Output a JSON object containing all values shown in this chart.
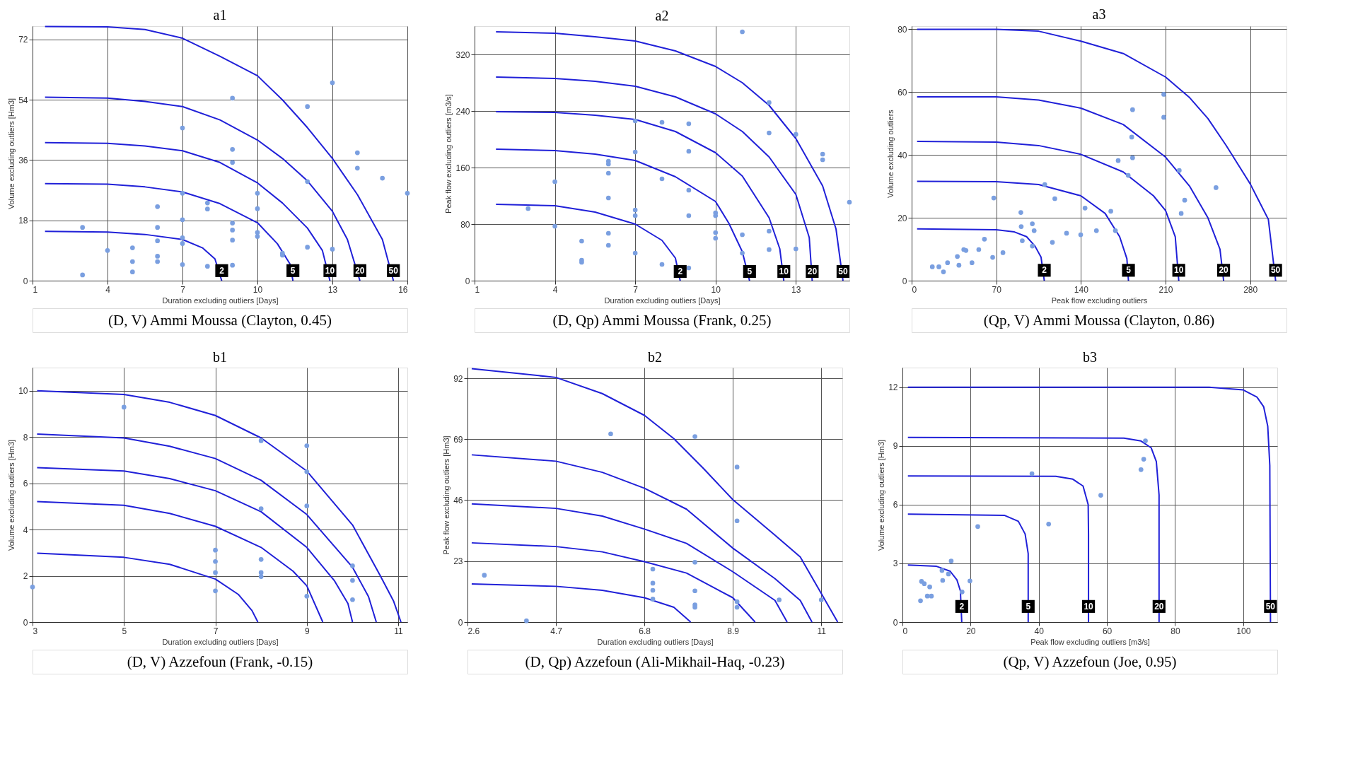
{
  "chart_data": [
    {
      "type": "scatter",
      "title": "a1",
      "xlabel": "Duration excluding outliers [Days]",
      "ylabel": "Volume excluding outliers [Hm3]",
      "xlim": [
        1,
        16
      ],
      "ylim": [
        0,
        76
      ],
      "xticks": [
        1,
        4,
        7,
        10,
        13,
        16
      ],
      "yticks": [
        0,
        18,
        36,
        54,
        72
      ],
      "grid": true,
      "annotations": [
        "(D, V) Ammi Moussa (Clayton, 0.45)",
        {
          "text": "2",
          "x": 8.57,
          "y": 3
        },
        {
          "text": "5",
          "x": 11.42,
          "y": 3
        },
        {
          "text": "10",
          "x": 12.9,
          "y": 3
        },
        {
          "text": "20",
          "x": 14.1,
          "y": 3
        },
        {
          "text": "50",
          "x": 15.44,
          "y": 3
        }
      ],
      "series": [
        {
          "type": "scatter",
          "marker": "circle",
          "color": "#7a9fe0",
          "x": [
            3,
            3,
            4,
            5,
            5,
            5,
            6,
            6,
            6,
            6,
            6,
            7,
            7,
            7,
            7,
            7,
            7,
            8,
            8,
            8,
            9,
            9,
            9,
            9,
            9,
            9,
            9,
            10,
            10,
            10,
            10,
            11,
            11,
            12,
            12,
            12,
            13,
            13,
            14,
            14,
            15,
            16
          ],
          "values": [
            1.7,
            15.9,
            9.0,
            9.8,
            5.7,
            2.6,
            22.1,
            15.9,
            11.9,
            7.3,
            5.7,
            45.6,
            26.1,
            18.2,
            12.8,
            11.1,
            4.8,
            23.2,
            21.4,
            4.3,
            54.5,
            39.2,
            35.3,
            17.2,
            15.1,
            12.1,
            4.6,
            26.1,
            21.5,
            14.4,
            13.2,
            8.2,
            7.6,
            52,
            29.6,
            10,
            59.1,
            9.4,
            38.2,
            33.6,
            30.6,
            26.1
          ]
        },
        {
          "type": "line",
          "color": "#2020d8",
          "x": [
            1.5,
            4,
            5.5,
            7,
            7.8,
            8.3,
            8.57
          ],
          "values": [
            14.7,
            14.5,
            13.8,
            12.3,
            9.8,
            6.5,
            0
          ]
        },
        {
          "type": "line",
          "color": "#2020d8",
          "x": [
            1.5,
            4,
            5.5,
            7,
            8.5,
            10,
            10.8,
            11.3,
            11.42
          ],
          "values": [
            29,
            28.8,
            28,
            26.5,
            23,
            17.3,
            11,
            5,
            0
          ]
        },
        {
          "type": "line",
          "color": "#2020d8",
          "x": [
            1.5,
            4,
            5.5,
            7,
            8.5,
            10,
            11,
            12,
            12.6,
            12.9
          ],
          "values": [
            41.2,
            41,
            40.2,
            38.8,
            35.3,
            29.2,
            23.2,
            15.7,
            9,
            0
          ]
        },
        {
          "type": "line",
          "color": "#2020d8",
          "x": [
            1.5,
            4,
            5.5,
            7,
            8.5,
            10,
            11,
            12,
            13,
            13.6,
            14.1
          ],
          "values": [
            54.8,
            54.5,
            53.5,
            52,
            48,
            42,
            36.5,
            29.8,
            20.7,
            12.3,
            0
          ]
        },
        {
          "type": "line",
          "color": "#2020d8",
          "x": [
            1.5,
            4,
            5.5,
            7,
            8.5,
            10,
            11,
            12,
            13,
            14,
            15,
            15.44
          ],
          "values": [
            75.9,
            75.8,
            75,
            72.4,
            67,
            61.2,
            54,
            45.7,
            36.5,
            25.7,
            12.3,
            0
          ]
        }
      ]
    },
    {
      "type": "scatter",
      "title": "a2",
      "xlabel": "Duration excluding outliers [Days]",
      "ylabel": "Peak flow excluding outliers [m3/s]",
      "xlim": [
        1,
        15
      ],
      "ylim": [
        0,
        360
      ],
      "xticks": [
        1,
        4,
        7,
        10,
        13
      ],
      "yticks": [
        0,
        80,
        160,
        240,
        320
      ],
      "grid": true,
      "annotations": [
        "(D, Qp) Ammi Moussa (Frank, 0.25)",
        {
          "text": "2",
          "x": 8.68,
          "y": 13
        },
        {
          "text": "5",
          "x": 11.27,
          "y": 13
        },
        {
          "text": "10",
          "x": 12.55,
          "y": 13
        },
        {
          "text": "20",
          "x": 13.61,
          "y": 13
        },
        {
          "text": "50",
          "x": 14.76,
          "y": 13
        }
      ],
      "series": [
        {
          "type": "scatter",
          "marker": "circle",
          "color": "#7a9fe0",
          "x": [
            11,
            3,
            4,
            4,
            5,
            5,
            5,
            6,
            6,
            6,
            6,
            6,
            6,
            7,
            7,
            7,
            7,
            7,
            8,
            8,
            8,
            9,
            9,
            9,
            9,
            9,
            10,
            10,
            10,
            10,
            11,
            11,
            12,
            12,
            12,
            12,
            13,
            13,
            14,
            14,
            15
          ],
          "values": [
            352,
            102,
            140,
            77,
            56,
            29,
            26,
            169,
            165,
            152,
            117,
            67,
            50,
            226,
            182,
            100,
            92,
            39,
            224,
            144,
            23,
            222,
            183,
            128,
            92,
            18,
            96,
            92,
            68,
            60,
            65,
            39,
            252,
            209,
            70,
            44,
            207,
            45,
            179,
            171,
            111
          ]
        },
        {
          "type": "line",
          "color": "#2020d8",
          "x": [
            1.8,
            4,
            5.5,
            7,
            8,
            8.5,
            8.68
          ],
          "values": [
            108,
            106,
            97,
            80,
            57,
            32,
            0
          ]
        },
        {
          "type": "line",
          "color": "#2020d8",
          "x": [
            1.8,
            4,
            5.5,
            7,
            8.5,
            10,
            10.5,
            11,
            11.27
          ],
          "values": [
            186,
            184,
            179,
            170,
            147,
            112,
            81,
            41,
            0
          ]
        },
        {
          "type": "line",
          "color": "#2020d8",
          "x": [
            1.8,
            4,
            5.5,
            7,
            8.5,
            10,
            11,
            12,
            12.4,
            12.55
          ],
          "values": [
            239,
            238,
            234,
            228,
            211,
            181,
            148,
            89,
            45,
            0
          ]
        },
        {
          "type": "line",
          "color": "#2020d8",
          "x": [
            1.8,
            4,
            5.5,
            7,
            8.5,
            10,
            11,
            12,
            13,
            13.5,
            13.61
          ],
          "values": [
            288,
            286,
            282,
            275,
            260,
            236,
            211,
            175,
            122,
            61,
            0
          ]
        },
        {
          "type": "line",
          "color": "#2020d8",
          "x": [
            1.8,
            4,
            5.5,
            7,
            8.5,
            10,
            11,
            12,
            13,
            14,
            14.5,
            14.76
          ],
          "values": [
            352,
            350,
            345,
            339,
            325,
            303,
            280,
            248,
            201,
            134,
            73,
            0
          ]
        }
      ]
    },
    {
      "type": "scatter",
      "title": "a3",
      "xlabel": "Peak flow excluding outliers",
      "ylabel": "Volume excluding outliers",
      "xlim": [
        0,
        310
      ],
      "ylim": [
        0,
        81
      ],
      "xticks": [
        0,
        70,
        140,
        210,
        280
      ],
      "yticks": [
        0,
        20,
        40,
        60,
        80
      ],
      "grid": true,
      "annotations": [
        "(Qp, V) Ammi Moussa (Clayton, 0.86)",
        {
          "text": "2",
          "x": 109.7,
          "y": 3.3
        },
        {
          "text": "5",
          "x": 179.3,
          "y": 3.3
        },
        {
          "text": "10",
          "x": 220.9,
          "y": 3.3
        },
        {
          "text": "20",
          "x": 258,
          "y": 3.3
        },
        {
          "text": "50",
          "x": 301,
          "y": 3.3
        }
      ],
      "series": [
        {
          "type": "scatter",
          "marker": "circle",
          "color": "#7a9fe0",
          "x": [
            17.1,
            22.5,
            26.3,
            29.7,
            37.8,
            39.1,
            43.1,
            44.9,
            49.9,
            55.5,
            60.2,
            67,
            67.9,
            75.5,
            90.3,
            90.6,
            91.5,
            99.8,
            99.8,
            101.3,
            110.1,
            116.4,
            118.4,
            128.1,
            139.8,
            143.4,
            152.8,
            164.7,
            168.5,
            170.8,
            179.1,
            182,
            182.7,
            182.7,
            208.5,
            208.5,
            221.3,
            222.9,
            225.8,
            251.7
          ],
          "values": [
            4.4,
            4.4,
            2.8,
            5.7,
            7.7,
            4.9,
            9.9,
            9.6,
            5.7,
            9.9,
            13.2,
            7.4,
            26.3,
            8.9,
            21.7,
            17.2,
            12.7,
            18.1,
            11,
            15.9,
            30.6,
            12.2,
            26.1,
            15.1,
            14.6,
            23.1,
            15.9,
            22.1,
            15.9,
            38.2,
            33.5,
            45.7,
            54.4,
            39.1,
            59.3,
            52,
            35.1,
            21.4,
            25.6,
            29.6
          ]
        },
        {
          "type": "line",
          "color": "#2020d8",
          "x": [
            4.5,
            70,
            85,
            95,
            102,
            107,
            109.7
          ],
          "values": [
            16.5,
            16.2,
            15.5,
            14,
            11,
            7.5,
            0
          ]
        },
        {
          "type": "line",
          "color": "#2020d8",
          "x": [
            4.5,
            70,
            105,
            140,
            160,
            172,
            178,
            179.3
          ],
          "values": [
            31.6,
            31.5,
            30.6,
            27,
            21.4,
            14,
            7,
            0
          ]
        },
        {
          "type": "line",
          "color": "#2020d8",
          "x": [
            4.5,
            70,
            105,
            140,
            175,
            200,
            210,
            218,
            220.9
          ],
          "values": [
            44.3,
            44.1,
            43,
            40.2,
            34.6,
            27,
            22.3,
            14,
            0
          ]
        },
        {
          "type": "line",
          "color": "#2020d8",
          "x": [
            4.5,
            70,
            105,
            140,
            175,
            210,
            230,
            245,
            255,
            258
          ],
          "values": [
            58.5,
            58.5,
            57.5,
            54.9,
            49.7,
            39.3,
            30,
            20,
            10,
            0
          ]
        },
        {
          "type": "line",
          "color": "#2020d8",
          "x": [
            4.5,
            70,
            105,
            140,
            175,
            210,
            230,
            245,
            260,
            280,
            295,
            301
          ],
          "values": [
            80,
            80,
            79.4,
            76.2,
            72.3,
            64.8,
            58.2,
            51.6,
            43.1,
            30.8,
            19.5,
            0
          ]
        }
      ]
    },
    {
      "type": "scatter",
      "title": "b1",
      "xlabel": "Duration excluding outliers [Days]",
      "ylabel": "Volume excluding outliers [Hm3]",
      "xlim": [
        3,
        11.2
      ],
      "ylim": [
        0,
        11
      ],
      "xticks": [
        3,
        5,
        7,
        9,
        11
      ],
      "yticks": [
        0,
        2,
        4,
        6,
        8,
        10
      ],
      "grid": true,
      "annotations": [
        "(D, V) Azzefoun (Frank, -0.15)"
      ],
      "series": [
        {
          "type": "scatter",
          "marker": "circle",
          "color": "#7a9fe0",
          "x": [
            3,
            5,
            7,
            7,
            7,
            7,
            8,
            8,
            8,
            8,
            8,
            9,
            9,
            9,
            9,
            10,
            10,
            10
          ],
          "values": [
            1.52,
            9.29,
            3.11,
            2.62,
            2.14,
            1.35,
            7.84,
            4.9,
            2.71,
            2.14,
            1.97,
            7.62,
            6.5,
            5.02,
            1.12,
            1.8,
            0.97,
            2.43
          ]
        },
        {
          "type": "line",
          "color": "#2020d8",
          "x": [
            3.1,
            5,
            6,
            7,
            7.5,
            7.8,
            7.93
          ],
          "values": [
            2.98,
            2.8,
            2.5,
            1.86,
            1.2,
            0.5,
            0
          ]
        },
        {
          "type": "line",
          "color": "#2020d8",
          "x": [
            3.1,
            5,
            6,
            7,
            8,
            8.7,
            9,
            9.35
          ],
          "values": [
            5.21,
            5.05,
            4.7,
            4.14,
            3.23,
            2.2,
            1.57,
            0
          ]
        },
        {
          "type": "line",
          "color": "#2020d8",
          "x": [
            3.1,
            5,
            6,
            7,
            8,
            9,
            9.6,
            9.9,
            10
          ],
          "values": [
            6.68,
            6.53,
            6.2,
            5.68,
            4.77,
            3.23,
            1.8,
            0.8,
            0
          ]
        },
        {
          "type": "line",
          "color": "#2020d8",
          "x": [
            3.1,
            5,
            6,
            7,
            8,
            9,
            10,
            10.35,
            10.52
          ],
          "values": [
            8.13,
            7.96,
            7.6,
            7.07,
            6.13,
            4.65,
            2.37,
            1.1,
            0
          ]
        },
        {
          "type": "line",
          "color": "#2020d8",
          "x": [
            3.1,
            5,
            6,
            7,
            8,
            9,
            10,
            10.6,
            10.9,
            11.06
          ],
          "values": [
            10,
            9.84,
            9.5,
            8.93,
            7.96,
            6.53,
            4.2,
            2.03,
            0.9,
            0
          ]
        }
      ]
    },
    {
      "type": "scatter",
      "title": "b2",
      "xlabel": "Duration excluding outliers [Days]",
      "ylabel": "Peak flow excluding outliers [Hm3]",
      "xlim": [
        2.6,
        11.5
      ],
      "ylim": [
        0,
        96
      ],
      "xticks": [
        2.6,
        4.7,
        6.8,
        8.9,
        11
      ],
      "yticks": [
        0,
        23,
        46,
        69,
        92
      ],
      "grid": true,
      "annotations": [
        "(D, Qp) Azzefoun (Ali-Mikhail-Haq, -0.23)"
      ],
      "series": [
        {
          "type": "scatter",
          "marker": "circle",
          "color": "#7a9fe0",
          "x": [
            3,
            4,
            6,
            8,
            7,
            7,
            7,
            7,
            8,
            8,
            8,
            8,
            9,
            9,
            9,
            9,
            10,
            11
          ],
          "values": [
            17.7,
            0.5,
            71,
            70,
            20,
            14.7,
            12,
            8.7,
            22.6,
            11.8,
            6.5,
            5.6,
            58.5,
            38.2,
            7.7,
            5.6,
            8.4,
            8.4
          ]
        },
        {
          "type": "line",
          "color": "#2020d8",
          "x": [
            2.7,
            4.7,
            5.8,
            6.8,
            7.5,
            7.9
          ],
          "values": [
            14.4,
            13.5,
            12,
            9.2,
            5.6,
            0
          ]
        },
        {
          "type": "line",
          "color": "#2020d8",
          "x": [
            2.7,
            4.7,
            5.8,
            6.8,
            7.8,
            8.9,
            9.2,
            9.43
          ],
          "values": [
            29.9,
            28.5,
            26.5,
            22.8,
            18.5,
            9.2,
            4,
            0
          ]
        },
        {
          "type": "line",
          "color": "#2020d8",
          "x": [
            2.7,
            4.7,
            5.8,
            6.8,
            7.8,
            8.9,
            9.9,
            10.19
          ],
          "values": [
            44.6,
            42.9,
            40,
            35.1,
            29.7,
            19,
            8.2,
            0
          ]
        },
        {
          "type": "line",
          "color": "#2020d8",
          "x": [
            2.7,
            4.7,
            5.8,
            6.8,
            7.8,
            8.9,
            9.9,
            10.5,
            10.78
          ],
          "values": [
            63.1,
            60.7,
            56.5,
            50.5,
            42.6,
            27.9,
            16.4,
            8.2,
            0
          ]
        },
        {
          "type": "line",
          "color": "#2020d8",
          "x": [
            2.7,
            4.7,
            5.8,
            6.8,
            7.5,
            8.2,
            8.9,
            9.9,
            10.5,
            11,
            11.39
          ],
          "values": [
            95.6,
            92.3,
            86.2,
            78,
            69.2,
            58,
            46.2,
            32.8,
            24.6,
            10.8,
            0
          ]
        }
      ]
    },
    {
      "type": "scatter",
      "title": "b3",
      "xlabel": "Peak flow excluding outliers [m3/s]",
      "ylabel": "Volume excluding outliers [Hm3]",
      "xlim": [
        0,
        110
      ],
      "ylim": [
        0,
        13
      ],
      "xticks": [
        0,
        20,
        40,
        60,
        80,
        100
      ],
      "yticks": [
        0,
        3,
        6,
        9,
        12
      ],
      "grid": true,
      "annotations": [
        "(Qp, V) Azzefoun (Joe, 0.95)",
        {
          "text": "2",
          "x": 17.4,
          "y": 0.8
        },
        {
          "text": "5",
          "x": 36.9,
          "y": 0.8
        },
        {
          "text": "10",
          "x": 54.6,
          "y": 0.8
        },
        {
          "text": "20",
          "x": 75.3,
          "y": 0.8
        },
        {
          "text": "50",
          "x": 108,
          "y": 0.8
        }
      ],
      "series": [
        {
          "type": "scatter",
          "marker": "circle",
          "color": "#7a9fe0",
          "x": [
            5.3,
            5.6,
            6.4,
            7.3,
            8,
            8.5,
            11.6,
            11.8,
            13.5,
            14.3,
            17.5,
            19.8,
            22.1,
            38,
            42.9,
            58.2,
            70,
            70.8,
            71.3
          ],
          "values": [
            1.09,
            2.08,
            1.96,
            1.33,
            1.8,
            1.33,
            2.64,
            2.13,
            2.46,
            3.12,
            1.54,
            2.1,
            4.88,
            7.58,
            5.01,
            6.48,
            7.79,
            8.32,
            9.26
          ]
        },
        {
          "type": "line",
          "color": "#2020d8",
          "x": [
            1.6,
            10,
            14,
            16,
            17,
            17.4
          ],
          "values": [
            2.92,
            2.85,
            2.6,
            2.15,
            1.6,
            0
          ]
        },
        {
          "type": "line",
          "color": "#2020d8",
          "x": [
            1.6,
            30,
            34,
            36,
            36.9,
            36.9
          ],
          "values": [
            5.52,
            5.45,
            5.15,
            4.5,
            3.5,
            0
          ]
        },
        {
          "type": "line",
          "color": "#2020d8",
          "x": [
            1.6,
            45,
            50,
            53,
            54.5,
            54.6,
            54.6
          ],
          "values": [
            7.47,
            7.45,
            7.3,
            6.95,
            6,
            4.5,
            0
          ]
        },
        {
          "type": "line",
          "color": "#2020d8",
          "x": [
            1.6,
            65,
            70,
            73,
            74.5,
            75.3,
            75.3
          ],
          "values": [
            9.43,
            9.4,
            9.25,
            8.9,
            8.2,
            6.5,
            0
          ]
        },
        {
          "type": "line",
          "color": "#2020d8",
          "x": [
            1.6,
            90,
            100,
            104,
            106,
            107.2,
            107.8,
            108
          ],
          "values": [
            12,
            12,
            11.86,
            11.5,
            11,
            10,
            8,
            0
          ]
        }
      ]
    }
  ]
}
